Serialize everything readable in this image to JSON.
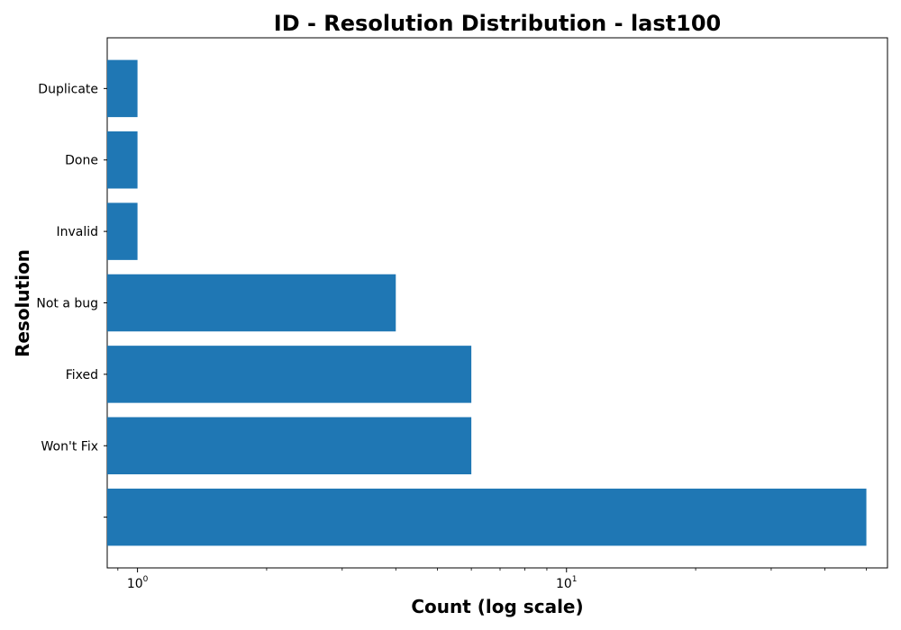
{
  "chart_data": {
    "type": "bar",
    "orientation": "horizontal",
    "title": "ID - Resolution Distribution - last100",
    "xlabel": "Count (log scale)",
    "ylabel": "Resolution",
    "x_scale": "log",
    "xlim": [
      0.85,
      56
    ],
    "x_ticks": [
      {
        "value": 1,
        "base": "10",
        "exponent": "0"
      },
      {
        "value": 10,
        "base": "10",
        "exponent": "1"
      }
    ],
    "categories": [
      "",
      "Won't Fix",
      "Fixed",
      "Not a bug",
      "Invalid",
      "Done",
      "Duplicate"
    ],
    "values": [
      50,
      6,
      6,
      4,
      1,
      1,
      1
    ],
    "bar_color": "#1f77b4",
    "grid": false,
    "legend": "none"
  }
}
